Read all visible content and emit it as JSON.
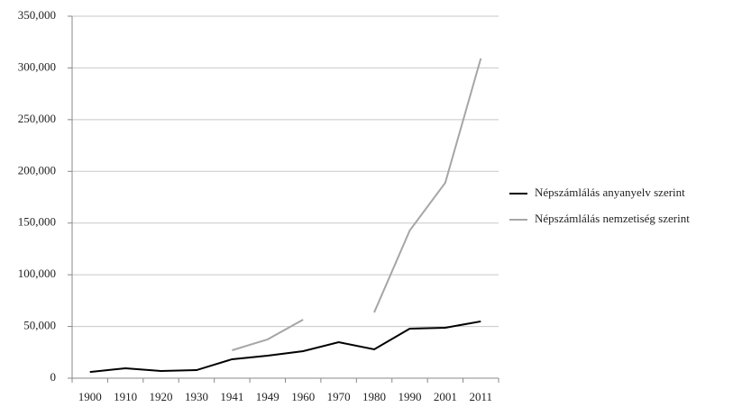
{
  "chart_data": {
    "type": "line",
    "categories": [
      "1900",
      "1910",
      "1920",
      "1930",
      "1941",
      "1949",
      "1960",
      "1970",
      "1980",
      "1990",
      "2001",
      "2011"
    ],
    "series": [
      {
        "name": "Népszámlálás anyanyelv szerint",
        "color": "#000000",
        "values": [
          6000,
          9600,
          7000,
          7800,
          18300,
          21800,
          26100,
          34800,
          27900,
          47900,
          48800,
          54900
        ]
      },
      {
        "name": "Népszámlálás nemzetiség szerint",
        "color": "#a6a6a6",
        "values": [
          null,
          null,
          null,
          null,
          27000,
          37500,
          56600,
          null,
          63600,
          142800,
          189000,
          309200
        ]
      }
    ],
    "ylim": [
      0,
      350000
    ],
    "yticks": [
      0,
      {
        "value": 50000,
        "label": "50,000"
      },
      {
        "value": 100000,
        "label": "100,000"
      },
      {
        "value": 150000,
        "label": "150,000"
      },
      {
        "value": 200000,
        "label": "200,000"
      },
      {
        "value": 250000,
        "label": "250,000"
      },
      {
        "value": 300000,
        "label": "300,000"
      },
      {
        "value": 350000,
        "label": "350,000"
      }
    ],
    "grid": true,
    "legend": "right"
  }
}
